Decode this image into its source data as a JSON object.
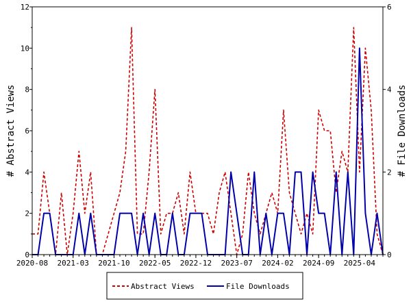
{
  "chart_data": {
    "type": "line",
    "x_labels": [
      "2020-08",
      "2021-03",
      "2021-10",
      "2022-05",
      "2022-12",
      "2023-07",
      "2024-02",
      "2024-09",
      "2025-04"
    ],
    "x_label_month_index": [
      0,
      7,
      14,
      21,
      28,
      35,
      42,
      49,
      56
    ],
    "ylabel_left": "# Abstract Views",
    "ylabel_right": "# File Downloads",
    "ylim_left": [
      0,
      12
    ],
    "ylim_right": [
      0,
      6
    ],
    "yticks_left": [
      0,
      2,
      4,
      6,
      8,
      10,
      12
    ],
    "yticks_right": [
      0,
      2,
      4,
      6
    ],
    "legend_position": "bottom-center",
    "series": [
      {
        "name": "Abstract Views",
        "axis": "left",
        "color": "#cc0000",
        "style": "dashed",
        "values": [
          1,
          1,
          4,
          2,
          0,
          3,
          0,
          2,
          5,
          2,
          4,
          0,
          0,
          1,
          2,
          3,
          5,
          11,
          1,
          1,
          4,
          8,
          1,
          2,
          2,
          3,
          1,
          4,
          2,
          2,
          2,
          1,
          3,
          4,
          2,
          0,
          1,
          4,
          2,
          1,
          2,
          3,
          2,
          7,
          3,
          2,
          1,
          2,
          1,
          7,
          6,
          6,
          3,
          5,
          4,
          11,
          4,
          10,
          7,
          1,
          0
        ]
      },
      {
        "name": "File Downloads",
        "axis": "right",
        "color": "#0000aa",
        "style": "solid",
        "values": [
          0,
          0,
          1,
          1,
          0,
          0,
          0,
          0,
          1,
          0,
          1,
          0,
          0,
          0,
          0,
          1,
          1,
          1,
          0,
          1,
          0,
          1,
          0,
          0,
          1,
          0,
          0,
          1,
          1,
          1,
          0,
          0,
          0,
          0,
          2,
          1,
          0,
          0,
          2,
          0,
          1,
          0,
          1,
          1,
          0,
          2,
          2,
          0,
          2,
          1,
          1,
          0,
          2,
          0,
          2,
          0,
          5,
          1,
          0,
          1,
          0
        ]
      }
    ]
  }
}
